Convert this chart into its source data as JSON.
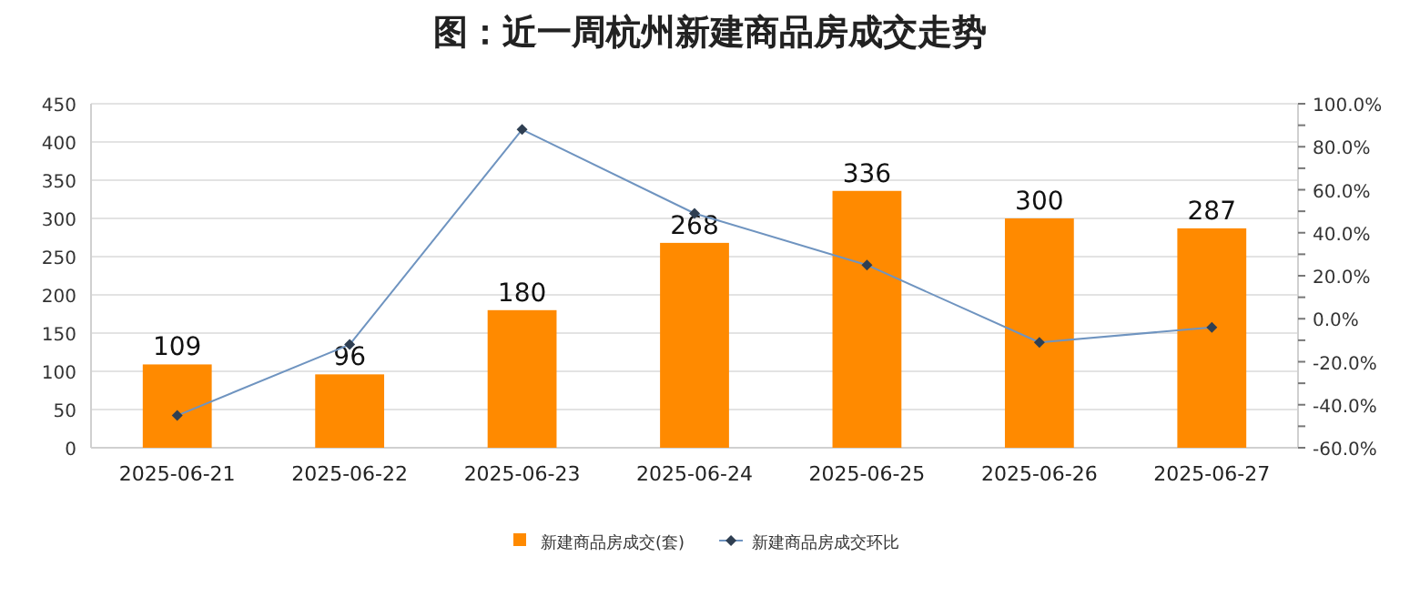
{
  "chart_data": {
    "type": "bar",
    "title": "图：近一周杭州新建商品房成交走势",
    "categories": [
      "2025-06-21",
      "2025-06-22",
      "2025-06-23",
      "2025-06-24",
      "2025-06-25",
      "2025-06-26",
      "2025-06-27"
    ],
    "series": [
      {
        "name": "新建商品房成交(套)",
        "color": "#ff8a00",
        "values": [
          109,
          96,
          180,
          268,
          336,
          300,
          287
        ],
        "value_labels": [
          "109",
          "96",
          "180",
          "268",
          "336",
          "300",
          "287"
        ]
      },
      {
        "name": "新建商品房成交环比",
        "type": "line",
        "axis": "y2",
        "color": "#6f94c0",
        "marker": "diamond",
        "values": [
          -45,
          -12,
          88,
          49,
          25,
          -11,
          -4
        ]
      }
    ],
    "ylim": [
      0,
      450
    ],
    "yticks": [
      0,
      50,
      100,
      150,
      200,
      250,
      300,
      350,
      400,
      450
    ],
    "y2lim": [
      -60,
      100
    ],
    "y2ticks": [
      {
        "value": -60,
        "label": "-60.0%"
      },
      {
        "value": -50,
        "label": null
      },
      {
        "value": -40,
        "label": "-40.0%"
      },
      {
        "value": -30,
        "label": null
      },
      {
        "value": -20,
        "label": "-20.0%"
      },
      {
        "value": -10,
        "label": null
      },
      {
        "value": 0,
        "label": "0.0%"
      },
      {
        "value": 10,
        "label": null
      },
      {
        "value": 20,
        "label": "20.0%"
      },
      {
        "value": 30,
        "label": null
      },
      {
        "value": 40,
        "label": "40.0%"
      },
      {
        "value": 50,
        "label": null
      },
      {
        "value": 60,
        "label": "60.0%"
      },
      {
        "value": 70,
        "label": null
      },
      {
        "value": 80,
        "label": "80.0%"
      },
      {
        "value": 90,
        "label": null
      },
      {
        "value": 100,
        "label": "100.0%"
      }
    ],
    "grid": "y",
    "legend": "bottom"
  }
}
